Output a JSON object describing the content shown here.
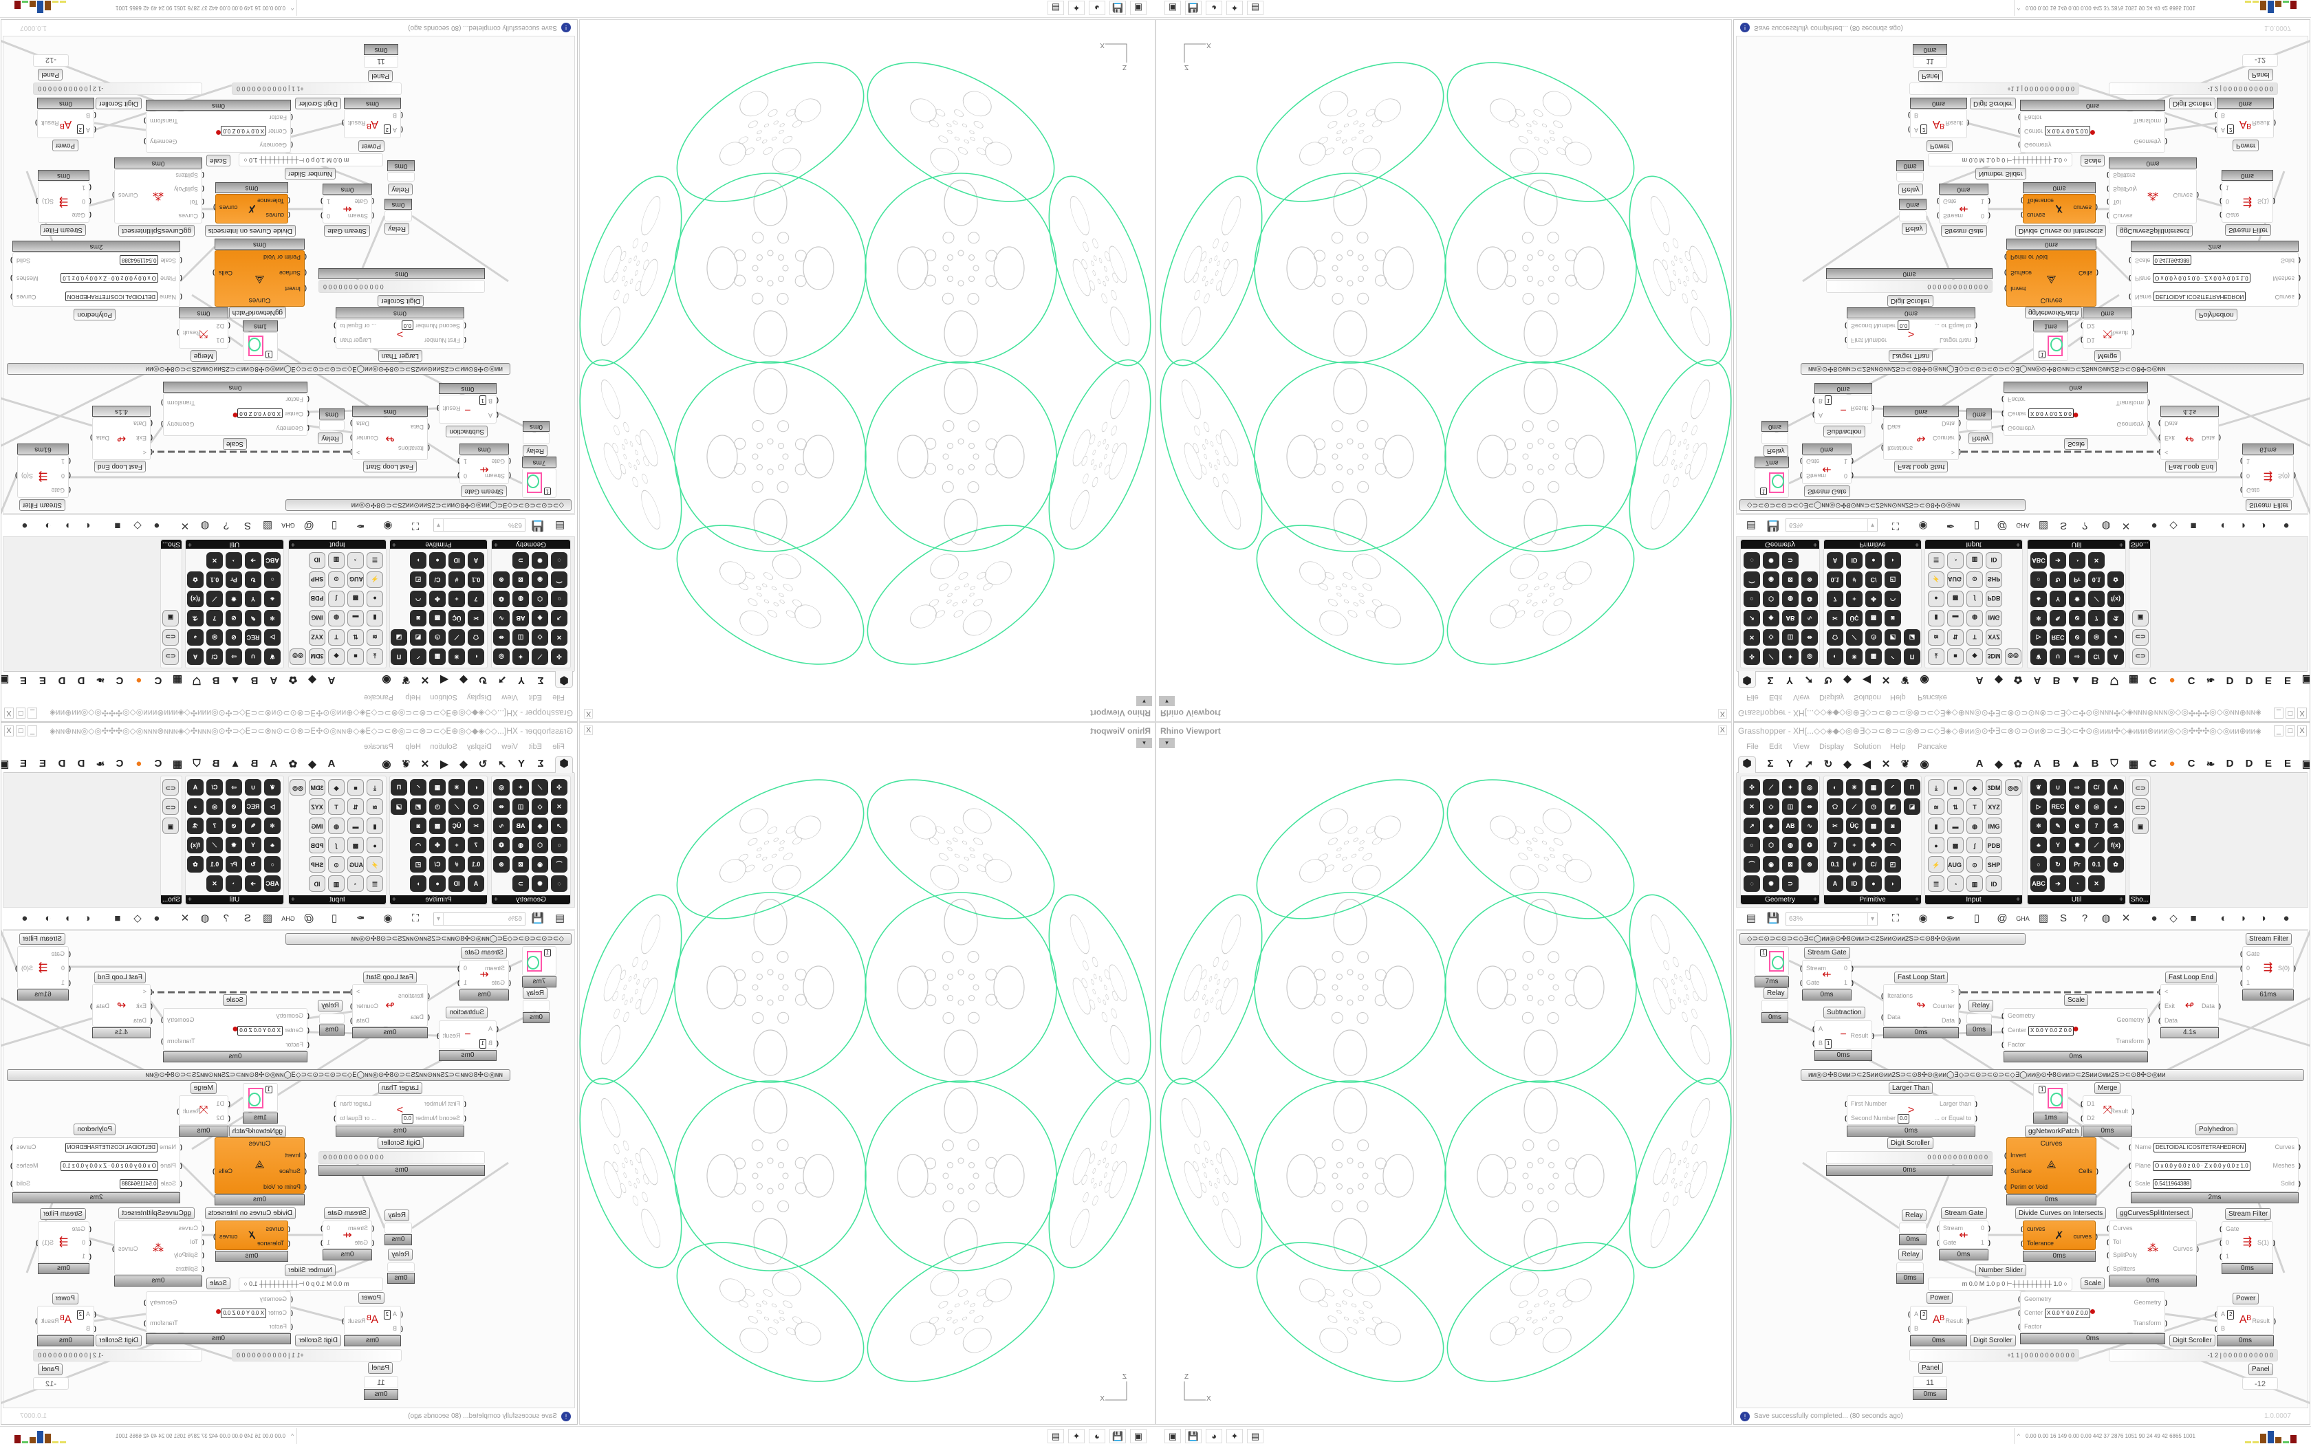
{
  "colors": {
    "geometry_preview": "#45e39c",
    "inner_curves": "#c8c8c8",
    "component_orange": "#f39420",
    "info": "#2a3f9d"
  },
  "viewport": {
    "title": "Rhino Viewport",
    "close": "X",
    "dropdown": "▾",
    "axis_z": "Z",
    "axis_x": "X"
  },
  "gh": {
    "title": "Grasshopper - XH[...◇◇◈◆◇◎⊕∃◇⊃⊂⊗⊃⊂◎⊗⊃⊂◇∃◈◇⊕ᴎᴎ◎⊙✣∃⊂⊗⊙⊃⊙ᴎ⊗⊃⊂∃◇⊂✣⊙◎ᴎᴎᴎ✣◇◈ᴎᴎᴎ⊗ᴎᴎᴎ◎◇◎✣✣✣◎◇◎ᴎᴎ⊕ᴎᴎ◈◇ᴎᴎ◎⊙✣⊃⊂∃⊗⊙⊃⊙⊗⊃...",
    "window_buttons": [
      "_",
      "□",
      "X"
    ],
    "menu": [
      "File",
      "Edit",
      "View",
      "Display",
      "Solution",
      "Help",
      "Pancake"
    ],
    "tabs": [
      "⬢",
      "Σ",
      "Y",
      "➚",
      "↻",
      "◆",
      "◀",
      "✕",
      "❦",
      "◉",
      "A",
      "◆",
      "✿",
      "A",
      "B",
      "▲",
      "B",
      "⛉",
      "▦",
      "C",
      "●",
      "C",
      "❧",
      "D",
      "D",
      "E",
      "E",
      "▣"
    ],
    "panels": [
      {
        "label": "Geometry",
        "icons": [
          "✣",
          "⟋",
          "✦",
          "◎",
          "✕",
          "◇",
          "◫",
          "⇹",
          "↗",
          "◈",
          "AB",
          "∿",
          "○",
          "⬡",
          "◍",
          "❂",
          "⌒",
          "◉",
          "⊠",
          "⊛",
          "◌",
          "✺",
          "⊃"
        ]
      },
      {
        "label": "Primitive",
        "icons": [
          "◐",
          "✳",
          "▦",
          "◜",
          "Π",
          "⬠",
          "⟋",
          "◷",
          "◩",
          "◪",
          "✂",
          "ÜÇ",
          "▩",
          "◙",
          "7",
          "+",
          "✤",
          "◠",
          "0.1",
          "#",
          "C/",
          "◰",
          "A",
          "ID",
          "●",
          "◗"
        ]
      },
      {
        "label": "Input",
        "icons": [
          "⤓",
          "■",
          "◆",
          "3DM",
          "◎◎",
          "≋",
          "⇅",
          "T",
          "XYZ",
          "▮",
          "▬",
          "◍",
          "IMG",
          "●",
          "▩",
          "∫",
          "PDB",
          "⚡",
          "AUG 20",
          "⊙",
          "SHP",
          "☰",
          "◔",
          "▥",
          "ID"
        ]
      },
      {
        "label": "Util",
        "icons": [
          "❦",
          "∪",
          "⇨",
          "C/",
          "A",
          "▷",
          "REC",
          "⊘",
          "◎",
          "◕",
          "⚛",
          "✎",
          "⊘",
          "7",
          "⚗",
          "♣",
          "Y",
          "✹",
          "⟋",
          "f(x)",
          "○",
          "↻",
          "Pr",
          "0.1",
          "✿",
          "ABC",
          "➔",
          "◔",
          "✕"
        ]
      },
      {
        "label": "Sho...",
        "icons": [
          "⊂⊃",
          "⊂⊃",
          "▣"
        ]
      }
    ],
    "toolbar": {
      "zoom": "63%",
      "zoom_arrow": "▾",
      "icons": [
        "▤",
        "💾",
        "⛶",
        "◉",
        "✒",
        "▯",
        "@",
        "GHA",
        "▧",
        "S",
        "?",
        "◍",
        "✕",
        "●",
        "◇",
        "■",
        "◐",
        "◗",
        "◑",
        "●"
      ]
    },
    "canvas": {
      "groups": [
        "◇⊃⊂⊙⊃⊂⊙⊃⊂◇∃⊂◯ᴎᴎ◎⊙✣8⊙ᴎᴎ⊃⊂2Sᴎᴎ⊙ᴎᴎ2S⊃⊂⊙8✣⊙◎ᴎᴎ",
        "ᴎᴎ◎⊙✣8⊙ᴎᴎ⊃⊂2Sᴎᴎ⊙ᴎᴎ2S⊃⊂⊙8✣⊙◎ᴎᴎ◯∃◇⊃⊂⊙⊃⊂⊙⊃⊂◇∃◯ᴎᴎ◎⊙✣8⊙ᴎᴎ⊃⊂2Sᴎᴎ⊙ᴎᴎ2S⊃⊂⊙8✣⊙◎ᴎᴎ"
      ],
      "components": [
        {
          "kind": "swatch",
          "value": "1",
          "time": "7ms"
        },
        {
          "label": "Relay",
          "kind": "relay",
          "time": "0ms"
        },
        {
          "label": "Stream Gate",
          "inputs": [
            {
              "n": "Stream"
            },
            {
              "n": "Gate"
            }
          ],
          "outputs": [
            "0",
            "1"
          ],
          "glyph": "⇷",
          "time": "0ms"
        },
        {
          "label": "Fast Loop Start",
          "inputs": [
            {
              "n": "Iterations"
            },
            {
              "n": "Data"
            }
          ],
          "outputs": [
            ">",
            "Counter",
            "Data"
          ],
          "glyph": "↬",
          "time": "0ms"
        },
        {
          "label": "Subtraction",
          "inputs": [
            {
              "n": "A"
            },
            {
              "n": "B",
              "v": "1"
            }
          ],
          "outputs": [
            "Result"
          ],
          "glyph": "−",
          "time": "0ms"
        },
        {
          "label": "Relay",
          "kind": "relay",
          "time": "0ms"
        },
        {
          "label": "Scale",
          "inputs": [
            {
              "n": "Geometry"
            },
            {
              "n": "Center",
              "v": "X 0.0  Y 0.0  Z 0.0"
            },
            {
              "n": "Factor"
            }
          ],
          "outputs": [
            "Geometry",
            "Transform"
          ],
          "glyph": "●",
          "time": "0ms"
        },
        {
          "label": "Fast Loop End",
          "inputs": [
            {
              "n": "<"
            },
            {
              "n": "Exit"
            },
            {
              "n": "Data"
            }
          ],
          "outputs": [
            "Data"
          ],
          "glyph": "↫",
          "time": "4.1s"
        },
        {
          "label": "Stream Filter",
          "inputs": [
            {
              "n": "Gate"
            },
            {
              "n": "0"
            },
            {
              "n": "1"
            }
          ],
          "outputs": [
            "S(0)"
          ],
          "glyph": "⇶",
          "time": "61ms"
        },
        {
          "label": "Larger Than",
          "inputs": [
            {
              "n": "First Number"
            },
            {
              "n": "Second Number",
              "v": "0.0"
            }
          ],
          "outputs": [
            "Larger than",
            "... or Equal to"
          ],
          "glyph": ">",
          "time": "0ms"
        },
        {
          "label": "ggNetworkPatch",
          "kind": "swatch",
          "value": "1",
          "time": "1ms"
        },
        {
          "label": "Merge",
          "inputs": [
            {
              "n": "D1"
            },
            {
              "n": "D2"
            }
          ],
          "outputs": [
            "Result"
          ],
          "glyph": "⤧",
          "time": "0ms"
        },
        {
          "label": "Polyhedron",
          "inputs": [
            {
              "n": "Name",
              "v": "DELTOIDAL ICOSITETRAHEDRON"
            },
            {
              "n": "Plane",
              "v": "O x 0.0 y 0.0 z 0.0 · Z x 0.0 y 0.0 z 1.0"
            },
            {
              "n": "Scale",
              "v": "0.5411964388"
            }
          ],
          "outputs": [
            "Curves",
            "Meshes",
            "Solid"
          ],
          "time": "2ms"
        },
        {
          "label": "Digit Scroller",
          "kind": "scroller",
          "value": "0 0 0 0 0 0 0 0 0 0 0 0",
          "time": "0ms"
        },
        {
          "header": "Curves",
          "kind": "orange",
          "inputs": [
            {
              "n": "Invert"
            },
            {
              "n": "Surface"
            },
            {
              "n": "Perim or Void"
            }
          ],
          "outputs": [
            "Cells"
          ],
          "glyph": "⟁",
          "time": "0ms"
        },
        {
          "label": "Relay",
          "kind": "relay",
          "time": "0ms"
        },
        {
          "label": "Stream Gate",
          "inputs": [
            {
              "n": "Stream"
            },
            {
              "n": "Gate"
            }
          ],
          "outputs": [
            "0",
            "1"
          ],
          "glyph": "⇷",
          "time": "0ms"
        },
        {
          "label": "Divide Curves on Intersects",
          "kind": "orange",
          "inputs": [
            {
              "n": "curves"
            },
            {
              "n": "Tolerance"
            }
          ],
          "outputs": [
            "curves"
          ],
          "glyph": "✗",
          "time": "0ms"
        },
        {
          "label": "ggCurvesSplitIntersect",
          "inputs": [
            {
              "n": "Curves"
            },
            {
              "n": "Tol"
            },
            {
              "n": "SplitPoly"
            },
            {
              "n": "Splitters"
            }
          ],
          "outputs": [
            "Curves"
          ],
          "glyph": "⁂",
          "time": "0ms"
        },
        {
          "label": "Stream Filter",
          "inputs": [
            {
              "n": "Gate"
            },
            {
              "n": "0"
            },
            {
              "n": "1"
            }
          ],
          "outputs": [
            "S(1)"
          ],
          "glyph": "⇶",
          "time": "0ms"
        },
        {
          "label": "Relay",
          "kind": "relay",
          "time": "0ms"
        },
        {
          "label": "Number Slider",
          "kind": "slider",
          "value": "m 0.0  M 1.0  p 0   ⊢┼┼┼┼┼┼┼┼┼ 1.0 ○"
        },
        {
          "label": "Power",
          "inputs": [
            {
              "n": "A",
              "v": "2"
            },
            {
              "n": "B"
            }
          ],
          "outputs": [
            "Result"
          ],
          "glyph": "Aᴮ",
          "time": "0ms"
        },
        {
          "label": "Scale",
          "inputs": [
            {
              "n": "Geometry"
            },
            {
              "n": "Center",
              "v": "X 0.0  Y 0.0  Z 0.0"
            },
            {
              "n": "Factor"
            }
          ],
          "outputs": [
            "Geometry",
            "Transform"
          ],
          "glyph": "●",
          "time": "0ms"
        },
        {
          "label": "Digit Scroller",
          "kind": "scroller",
          "value": "+1 1 | 0 0 0 0 0 0 0 0 0 0"
        },
        {
          "label": "Digit Scroller",
          "kind": "scroller",
          "value": "-1 2 | 0 0 0 0 0 0 0 0 0 0"
        },
        {
          "label": "Power",
          "inputs": [
            {
              "n": "A",
              "v": "2"
            },
            {
              "n": "B"
            }
          ],
          "outputs": [
            "Result"
          ],
          "glyph": "Aᴮ",
          "time": "0ms"
        },
        {
          "label": "Panel",
          "kind": "panel",
          "value": "11",
          "time": "0ms"
        },
        {
          "label": "Panel",
          "kind": "panel",
          "value": "-12"
        }
      ]
    },
    "status": {
      "message": "Save successfully completed... (80 seconds ago)",
      "version": "1.0.0007",
      "info_icon": "!"
    }
  },
  "taskbar": {
    "apps": [
      "▣",
      "💾",
      "◕",
      "✦",
      "▤"
    ],
    "tray_caret": "^",
    "tray_text": "0.00 0.00  16  149 0.00 0.00 442  37  2876 1051  90  24  49  42  6865 1001",
    "tray_bar_colors": [
      "#e8e060",
      "#e8e060",
      "#8a4a12",
      "#1f4fa0",
      "#8a4a12",
      "#5ec85e",
      "#8b1010"
    ]
  }
}
